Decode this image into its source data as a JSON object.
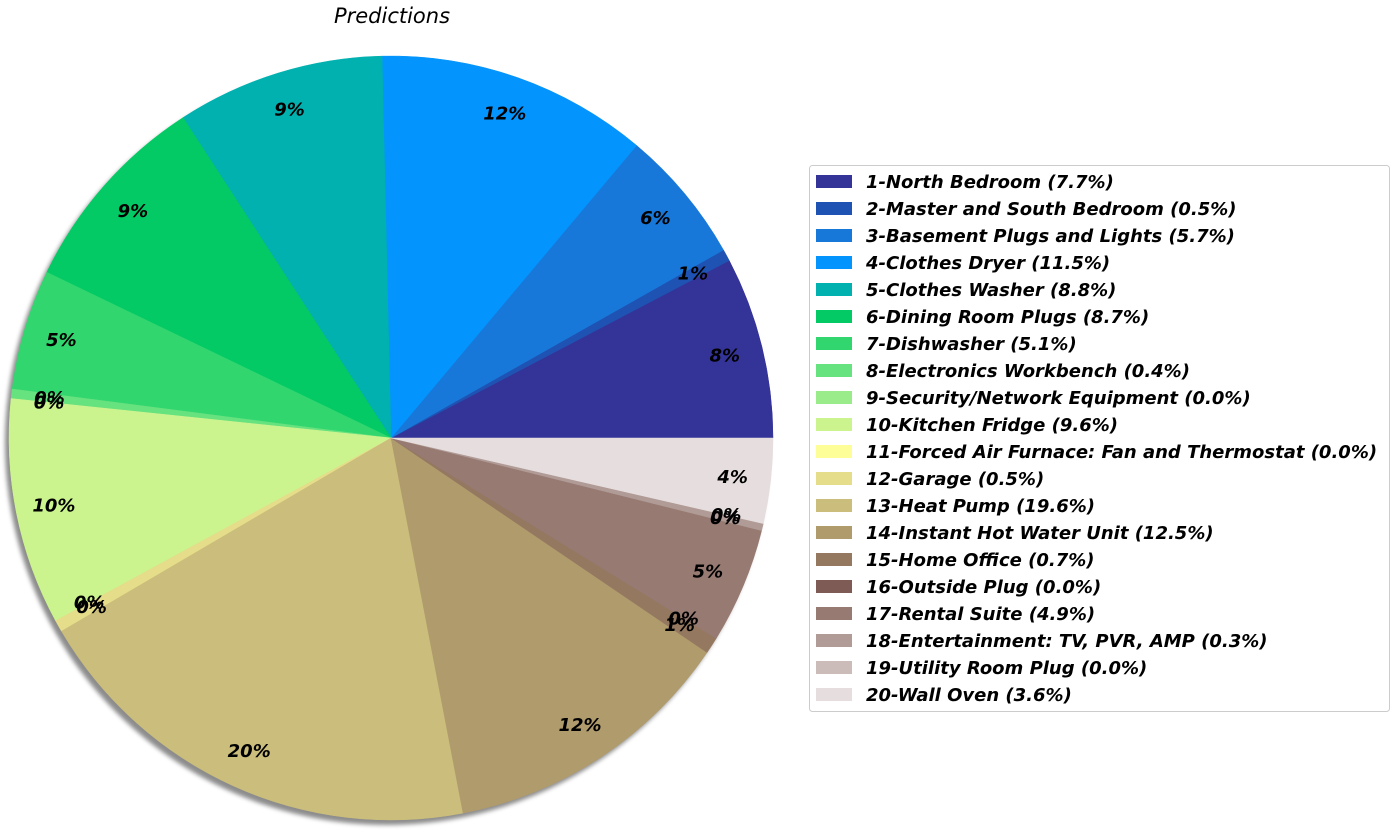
{
  "chart_data": {
    "type": "pie",
    "title": "Predictions",
    "start_angle_deg": 0,
    "direction": "counterclockwise",
    "shadow": true,
    "legend_position": "right",
    "slices": [
      {
        "label": "1-North Bedroom (7.7%)",
        "value": 7.7,
        "pct_label": "8%",
        "color": "#343398"
      },
      {
        "label": "2-Master and South Bedroom (0.5%)",
        "value": 0.5,
        "pct_label": "1%",
        "color": "#1e53b4"
      },
      {
        "label": "3-Basement Plugs and Lights (5.7%)",
        "value": 5.7,
        "pct_label": "6%",
        "color": "#1878da"
      },
      {
        "label": "4-Clothes Dryer (11.5%)",
        "value": 11.5,
        "pct_label": "12%",
        "color": "#0394fe"
      },
      {
        "label": "5-Clothes Washer (8.8%)",
        "value": 8.8,
        "pct_label": "9%",
        "color": "#00b1b0"
      },
      {
        "label": "6-Dining Room Plugs (8.7%)",
        "value": 8.7,
        "pct_label": "9%",
        "color": "#03ca64"
      },
      {
        "label": "7-Dishwasher (5.1%)",
        "value": 5.1,
        "pct_label": "5%",
        "color": "#31d66f"
      },
      {
        "label": "8-Electronics Workbench (0.4%)",
        "value": 0.4,
        "pct_label": "0%",
        "color": "#66e27f"
      },
      {
        "label": "9-Security/Network Equipment (0.0%)",
        "value": 0.0,
        "pct_label": "0%",
        "color": "#9aec8a"
      },
      {
        "label": "10-Kitchen Fridge (9.6%)",
        "value": 9.6,
        "pct_label": "10%",
        "color": "#ccf48e"
      },
      {
        "label": "11-Forced Air Furnace: Fan and Thermostat (0.0%)",
        "value": 0.0,
        "pct_label": "0%",
        "color": "#fefe98"
      },
      {
        "label": "12-Garage (0.5%)",
        "value": 0.5,
        "pct_label": "0%",
        "color": "#e5dd8a"
      },
      {
        "label": "13-Heat Pump (19.6%)",
        "value": 19.6,
        "pct_label": "20%",
        "color": "#cbbd7b"
      },
      {
        "label": "14-Instant Hot Water Unit (12.5%)",
        "value": 12.5,
        "pct_label": "12%",
        "color": "#b09b6d"
      },
      {
        "label": "15-Home Office (0.7%)",
        "value": 0.7,
        "pct_label": "1%",
        "color": "#957860"
      },
      {
        "label": "16-Outside Plug (0.0%)",
        "value": 0.0,
        "pct_label": "0%",
        "color": "#7e5b55"
      },
      {
        "label": "17-Rental Suite (4.9%)",
        "value": 4.9,
        "pct_label": "5%",
        "color": "#977a72"
      },
      {
        "label": "18-Entertainment: TV, PVR, AMP (0.3%)",
        "value": 0.3,
        "pct_label": "0%",
        "color": "#b09b96"
      },
      {
        "label": "19-Utility Room Plug (0.0%)",
        "value": 0.0,
        "pct_label": "0%",
        "color": "#cbbcba"
      },
      {
        "label": "20-Wall Oven (3.6%)",
        "value": 3.6,
        "pct_label": "4%",
        "color": "#e6dede"
      }
    ]
  }
}
